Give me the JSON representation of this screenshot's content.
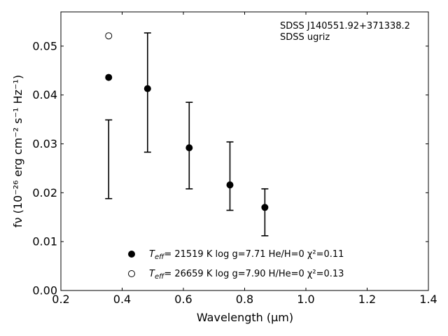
{
  "chart_data": {
    "type": "scatter",
    "title": "",
    "annotation_lines": [
      "SDSS J140551.92+371338.2",
      "SDSS ugriz"
    ],
    "xlabel": "Wavelength (μm)",
    "ylabel": "fν (10⁻²⁶ erg cm⁻² s⁻¹ Hz⁻¹)",
    "xlim": [
      0.2,
      1.4
    ],
    "ylim": [
      0.0,
      0.057
    ],
    "xticks": [
      0.2,
      0.4,
      0.6,
      0.8,
      1.0,
      1.2,
      1.4
    ],
    "xtick_labels": [
      "0.2",
      "0.4",
      "0.6",
      "0.8",
      "1.0",
      "1.2",
      "1.4"
    ],
    "yticks": [
      0.0,
      0.01,
      0.02,
      0.03,
      0.04,
      0.05
    ],
    "ytick_labels": [
      "0.00",
      "0.01",
      "0.02",
      "0.03",
      "0.04",
      "0.05"
    ],
    "grid": false,
    "observed": {
      "x": [
        0.356,
        0.483,
        0.619,
        0.752,
        0.866
      ],
      "y_low": [
        0.0188,
        0.0283,
        0.0208,
        0.0164,
        0.0112
      ],
      "y_high": [
        0.0349,
        0.0527,
        0.0385,
        0.0304,
        0.0208
      ]
    },
    "series": [
      {
        "marker": "filled-circle",
        "x": [
          0.356,
          0.483,
          0.619,
          0.752,
          0.866
        ],
        "y": [
          0.0436,
          0.0413,
          0.0292,
          0.0216,
          0.017
        ],
        "legend_prefix": "T",
        "legend_sub": "eff",
        "legend_rest": "= 21519 K  log g=7.71  He/H=0  χ²=0.11"
      },
      {
        "marker": "open-circle",
        "x": [
          0.356
        ],
        "y": [
          0.0521
        ],
        "legend_prefix": "T",
        "legend_sub": "eff",
        "legend_rest": "= 26659 K  log g=7.90  H/He=0  χ²=0.13"
      }
    ],
    "legend_position": "bottom-center"
  }
}
